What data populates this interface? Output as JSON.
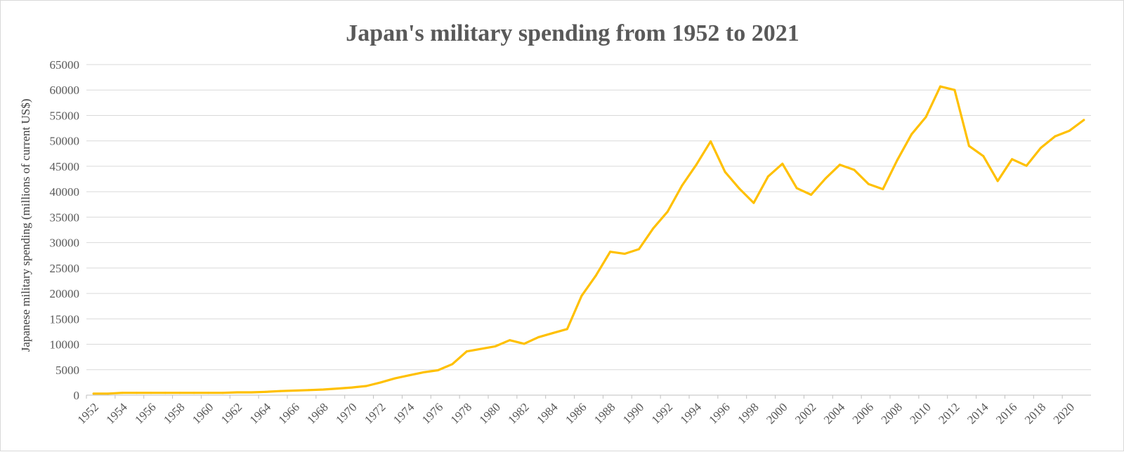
{
  "chart_data": {
    "type": "line",
    "title": "Japan's military spending from 1952 to 2021",
    "xlabel": "",
    "ylabel": "Japanese military spending (millions of current US$)",
    "ylim": [
      0,
      65000
    ],
    "yticks": [
      0,
      5000,
      10000,
      15000,
      20000,
      25000,
      30000,
      35000,
      40000,
      45000,
      50000,
      55000,
      60000,
      65000
    ],
    "xtick_labels": [
      "1952",
      "1954",
      "1956",
      "1958",
      "1960",
      "1962",
      "1964",
      "1966",
      "1968",
      "1970",
      "1972",
      "1974",
      "1976",
      "1978",
      "1980",
      "1982",
      "1984",
      "1986",
      "1988",
      "1990",
      "1992",
      "1994",
      "1996",
      "1998",
      "2000",
      "2002",
      "2004",
      "2006",
      "2008",
      "2010",
      "2012",
      "2014",
      "2016",
      "2018",
      "2020"
    ],
    "grid": true,
    "legend": "none",
    "color": "#ffc000",
    "x": [
      1952,
      1953,
      1954,
      1955,
      1956,
      1957,
      1958,
      1959,
      1960,
      1961,
      1962,
      1963,
      1964,
      1965,
      1966,
      1967,
      1968,
      1969,
      1970,
      1971,
      1972,
      1973,
      1974,
      1975,
      1976,
      1977,
      1978,
      1979,
      1980,
      1981,
      1982,
      1983,
      1984,
      1985,
      1986,
      1987,
      1988,
      1989,
      1990,
      1991,
      1992,
      1993,
      1994,
      1995,
      1996,
      1997,
      1998,
      1999,
      2000,
      2001,
      2002,
      2003,
      2004,
      2005,
      2006,
      2007,
      2008,
      2009,
      2010,
      2011,
      2012,
      2013,
      2014,
      2015,
      2016,
      2017,
      2018,
      2019,
      2020,
      2021
    ],
    "series": [
      {
        "values": [
          300,
          300,
          450,
          450,
          450,
          450,
          450,
          450,
          450,
          450,
          550,
          550,
          650,
          800,
          900,
          1000,
          1100,
          1300,
          1500,
          1800,
          2500,
          3300,
          3900,
          4500,
          4900,
          6100,
          8600,
          9100,
          9600,
          10800,
          10100,
          11400,
          12200,
          13000,
          19500,
          23500,
          28200,
          27800,
          28700,
          32800,
          36100,
          41200,
          45300,
          49900,
          43900,
          40600,
          37800,
          43000,
          45500,
          40700,
          39400,
          42600,
          45300,
          44300,
          41500,
          40500,
          46200,
          51300,
          54700,
          60700,
          60000,
          49000,
          47000,
          42100,
          46400,
          45100,
          48600,
          50900,
          52000,
          54100
        ]
      }
    ]
  }
}
